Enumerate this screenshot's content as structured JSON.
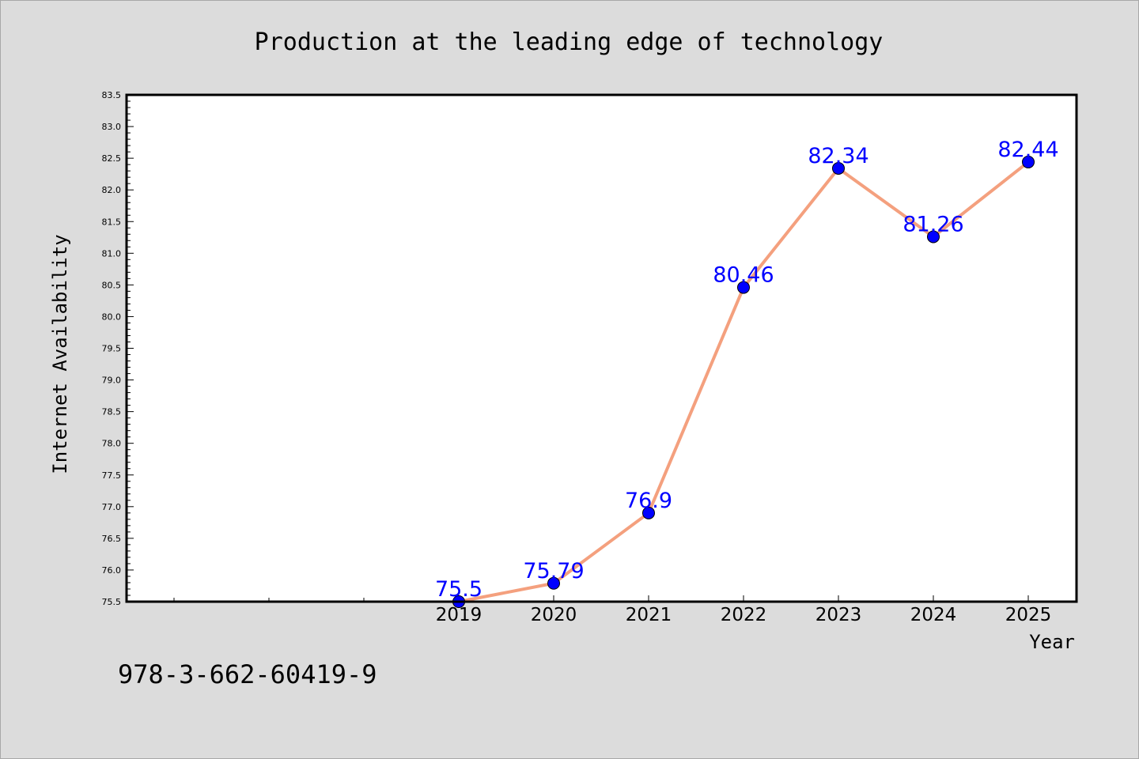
{
  "chart_data": {
    "type": "line",
    "title": "Production at the leading edge of technology",
    "xlabel": "Year",
    "ylabel": "Internet Availability",
    "x": [
      "2019",
      "2020",
      "2021",
      "2022",
      "2023",
      "2024",
      "2025"
    ],
    "series": [
      {
        "values": [
          75.5,
          75.79,
          76.9,
          80.46,
          82.34,
          81.26,
          82.44
        ],
        "data_labels": [
          "75.5",
          "75.79",
          "76.9",
          "80.46",
          "82.34",
          "81.26",
          "82.44"
        ]
      }
    ],
    "ylim": [
      75.5,
      83.5
    ],
    "yticks": [
      "75.5",
      "76.0",
      "76.5",
      "77.0",
      "77.5",
      "78.0",
      "78.5",
      "79.0",
      "79.5",
      "80.0",
      "80.5",
      "81.0",
      "81.5",
      "82.0",
      "82.5",
      "83.0",
      "83.5"
    ],
    "grid": false,
    "legend": "none",
    "colors": {
      "line": "#f4a07e",
      "marker": "#0000ff",
      "data_label": "#0000ff",
      "background": "#dcdcdc",
      "plot_background": "#ffffff"
    }
  },
  "footer": {
    "text": "978-3-662-60419-9"
  }
}
